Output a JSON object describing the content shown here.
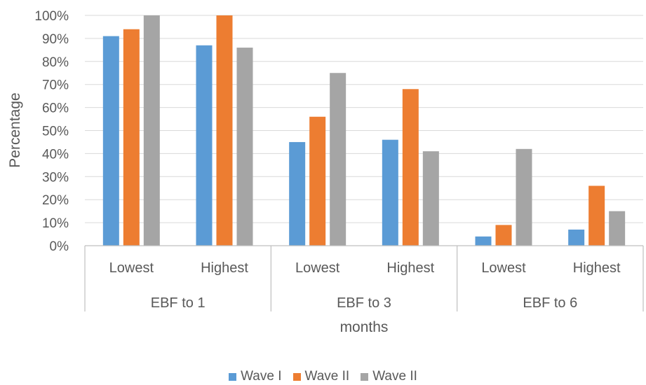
{
  "chart_data": {
    "type": "bar",
    "xlabel": "months",
    "ylabel": "Percentage",
    "ylim": [
      0,
      100
    ],
    "y_ticks": [
      "0%",
      "10%",
      "20%",
      "30%",
      "40%",
      "50%",
      "60%",
      "70%",
      "80%",
      "90%",
      "100%"
    ],
    "groups": [
      {
        "label": "EBF to 1",
        "categories": [
          "Lowest",
          "Highest"
        ]
      },
      {
        "label": "EBF to 3",
        "categories": [
          "Lowest",
          "Highest"
        ]
      },
      {
        "label": "EBF to 6",
        "categories": [
          "Lowest",
          "Highest"
        ]
      }
    ],
    "series": [
      {
        "name": "Wave I",
        "color": "#5B9BD5",
        "values": [
          91,
          87,
          45,
          46,
          4,
          7
        ]
      },
      {
        "name": "Wave II",
        "color": "#ED7D31",
        "values": [
          94,
          100,
          56,
          68,
          9,
          26
        ]
      },
      {
        "name": "Wave II",
        "color": "#A5A5A5",
        "values": [
          100,
          86,
          75,
          41,
          42,
          15
        ]
      }
    ],
    "grid": true,
    "legend_position": "bottom"
  }
}
